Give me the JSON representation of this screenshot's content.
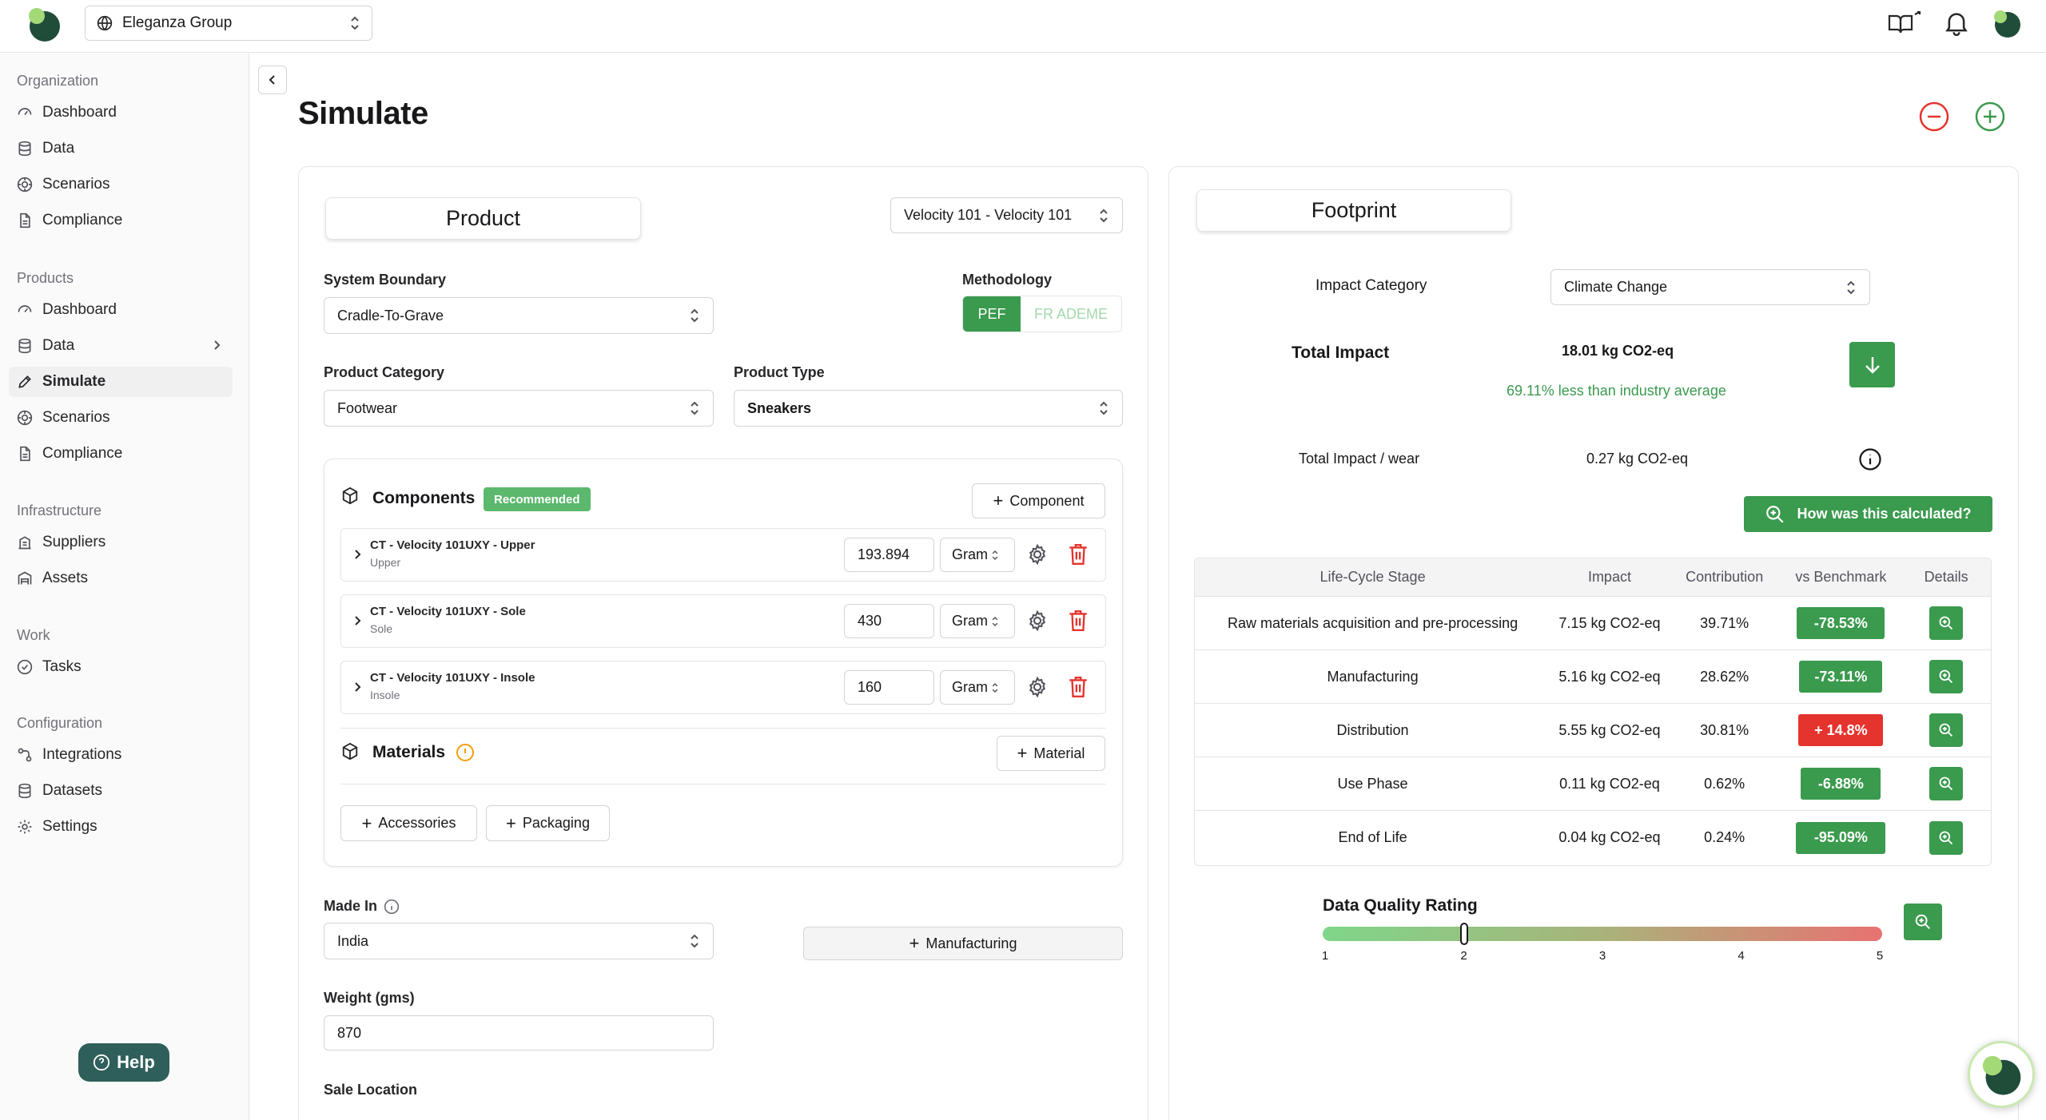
{
  "colors": {
    "accent": "#3a9a4e",
    "danger": "#e5342d",
    "help": "#2f5f5a",
    "muted": "#71717a"
  },
  "header": {
    "org_name": "Eleganza Group"
  },
  "sidebar": {
    "sections": [
      {
        "title": "Organization",
        "items": [
          {
            "label": "Dashboard",
            "icon": "gauge-icon"
          },
          {
            "label": "Data",
            "icon": "database-icon"
          },
          {
            "label": "Scenarios",
            "icon": "target-icon"
          },
          {
            "label": "Compliance",
            "icon": "document-icon"
          }
        ]
      },
      {
        "title": "Products",
        "items": [
          {
            "label": "Dashboard",
            "icon": "gauge-icon"
          },
          {
            "label": "Data",
            "icon": "database-icon"
          },
          {
            "label": "Simulate",
            "icon": "pencil-icon",
            "active": true
          },
          {
            "label": "Scenarios",
            "icon": "target-icon"
          },
          {
            "label": "Compliance",
            "icon": "document-icon"
          }
        ]
      },
      {
        "title": "Infrastructure",
        "items": [
          {
            "label": "Suppliers",
            "icon": "building-icon"
          },
          {
            "label": "Assets",
            "icon": "warehouse-icon"
          }
        ]
      },
      {
        "title": "Work",
        "items": [
          {
            "label": "Tasks",
            "icon": "check-circle-icon"
          }
        ]
      },
      {
        "title": "Configuration",
        "items": [
          {
            "label": "Integrations",
            "icon": "integrations-icon"
          },
          {
            "label": "Datasets",
            "icon": "database-icon"
          },
          {
            "label": "Settings",
            "icon": "gear-icon"
          }
        ]
      }
    ],
    "help_label": "Help"
  },
  "page": {
    "title": "Simulate"
  },
  "product": {
    "tab_label": "Product",
    "selected_product": "Velocity 101 - Velocity 101",
    "system_boundary_label": "System Boundary",
    "system_boundary": "Cradle-To-Grave",
    "methodology_label": "Methodology",
    "methodology_options": [
      "PEF",
      "FR ADEME"
    ],
    "product_category_label": "Product Category",
    "product_category": "Footwear",
    "product_type_label": "Product Type",
    "product_type": "Sneakers",
    "components_title": "Components",
    "recommended_badge": "Recommended",
    "add_component_label": "Component",
    "components": [
      {
        "name": "CT - Velocity 101UXY - Upper",
        "part": "Upper",
        "quantity": "193.894",
        "unit": "Gram"
      },
      {
        "name": "CT - Velocity 101UXY - Sole",
        "part": "Sole",
        "quantity": "430",
        "unit": "Gram"
      },
      {
        "name": "CT - Velocity 101UXY - Insole",
        "part": "Insole",
        "quantity": "160",
        "unit": "Gram"
      }
    ],
    "materials_title": "Materials",
    "add_material_label": "Material",
    "accessories_label": "Accessories",
    "packaging_label": "Packaging",
    "made_in_label": "Made In",
    "made_in": "India",
    "manufacturing_label": "Manufacturing",
    "weight_label": "Weight (gms)",
    "weight": "870",
    "sale_location_label": "Sale Location"
  },
  "footprint": {
    "tab_label": "Footprint",
    "impact_category_label": "Impact Category",
    "impact_category": "Climate Change",
    "total_impact_label": "Total Impact",
    "total_impact": "18.01 kg CO2-eq",
    "comparison": "69.11% less than industry average",
    "per_wear_label": "Total Impact / wear",
    "per_wear": "0.27 kg CO2-eq",
    "how_calculated_label": "How was this calculated?",
    "table": {
      "headers": [
        "Life-Cycle Stage",
        "Impact",
        "Contribution",
        "vs Benchmark",
        "Details"
      ],
      "rows": [
        {
          "stage": "Raw materials acquisition and pre-processing",
          "impact": "7.15 kg CO2-eq",
          "contribution": "39.71%",
          "benchmark": "-78.53%",
          "status": "better"
        },
        {
          "stage": "Manufacturing",
          "impact": "5.16 kg CO2-eq",
          "contribution": "28.62%",
          "benchmark": "-73.11%",
          "status": "better"
        },
        {
          "stage": "Distribution",
          "impact": "5.55 kg CO2-eq",
          "contribution": "30.81%",
          "benchmark": "+ 14.8%",
          "status": "worse"
        },
        {
          "stage": "Use Phase",
          "impact": "0.11 kg CO2-eq",
          "contribution": "0.62%",
          "benchmark": "-6.88%",
          "status": "better"
        },
        {
          "stage": "End of Life",
          "impact": "0.04 kg CO2-eq",
          "contribution": "0.24%",
          "benchmark": "-95.09%",
          "status": "better"
        }
      ]
    },
    "dqr": {
      "title": "Data Quality Rating",
      "ticks": [
        "1",
        "2",
        "3",
        "4",
        "5"
      ],
      "value": 2
    }
  }
}
